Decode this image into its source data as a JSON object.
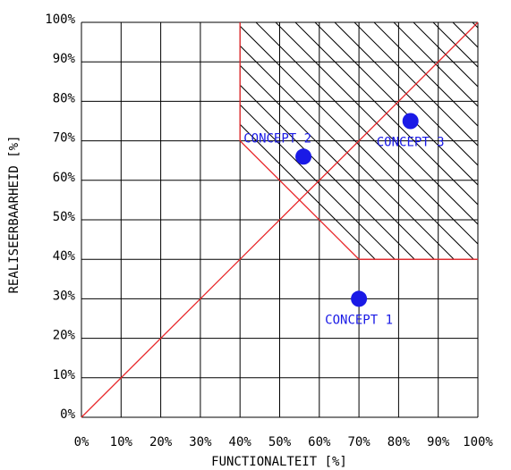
{
  "chart_data": {
    "type": "scatter",
    "xlabel": "FUNCTIONALTEIT [%]",
    "ylabel": "REALISEERBAARHEID [%]",
    "xlim": [
      0,
      100
    ],
    "ylim": [
      0,
      100
    ],
    "grid": true,
    "x_ticks": [
      0,
      10,
      20,
      30,
      40,
      50,
      60,
      70,
      80,
      90,
      100
    ],
    "y_ticks": [
      0,
      10,
      20,
      30,
      40,
      50,
      60,
      70,
      80,
      90,
      100
    ],
    "x_tick_labels": [
      "0%",
      "10%",
      "20%",
      "30%",
      "40%",
      "50%",
      "60%",
      "70%",
      "80%",
      "90%",
      "100%"
    ],
    "y_tick_labels": [
      "0%",
      "10%",
      "20%",
      "30%",
      "40%",
      "50%",
      "60%",
      "70%",
      "80%",
      "90%",
      "100%"
    ],
    "points": [
      {
        "label": "CONCEPT 1",
        "x": 70,
        "y": 30,
        "label_position": "below"
      },
      {
        "label": "CONCEPT 2",
        "x": 56,
        "y": 66,
        "label_position": "above-left"
      },
      {
        "label": "CONCEPT 3",
        "x": 83,
        "y": 75,
        "label_position": "below"
      }
    ],
    "diagonal": {
      "from": [
        0,
        0
      ],
      "to": [
        100,
        100
      ]
    },
    "acceptable_region": {
      "boundary": [
        [
          40,
          100
        ],
        [
          40,
          70
        ],
        [
          70,
          40
        ],
        [
          100,
          40
        ]
      ],
      "hatched": true
    },
    "colors": {
      "grid": "#000000",
      "reference_lines": "#e8282b",
      "points": "#1a1ae6",
      "labels": "#1a1ae6",
      "hatch": "#000000"
    }
  }
}
